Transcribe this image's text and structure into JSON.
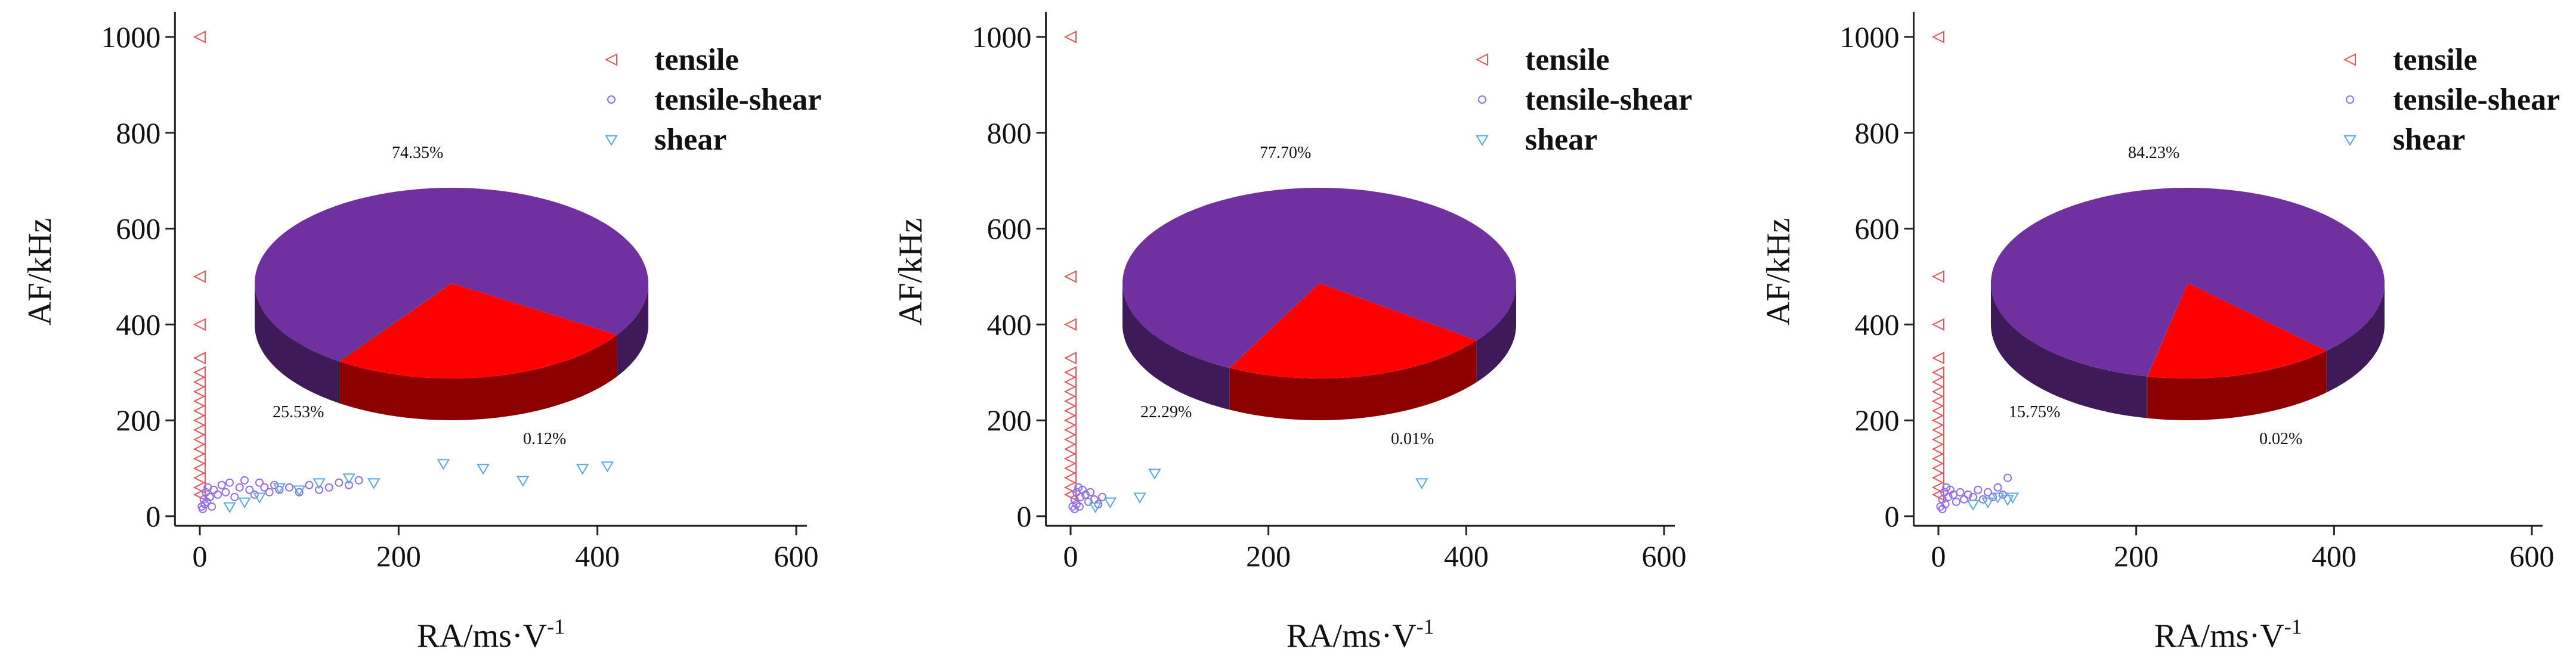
{
  "chart_data": [
    {
      "type": "scatter",
      "xlabel": "RA/ms·V",
      "xlabel_sup": "-1",
      "ylabel": "AF/kHz",
      "xlim": [
        -25,
        600
      ],
      "ylim": [
        -20,
        1040
      ],
      "xticks": [
        "0",
        "200",
        "400",
        "600"
      ],
      "yticks": [
        "0",
        "200",
        "400",
        "600",
        "800",
        "1000"
      ],
      "legend": [
        {
          "name": "tensile",
          "marker": "triangle-left",
          "color": "#e8555a"
        },
        {
          "name": "tensile-shear",
          "marker": "circle",
          "color": "#8f6cf0"
        },
        {
          "name": "shear",
          "marker": "triangle-down",
          "color": "#5aa8e0"
        }
      ],
      "series": [
        {
          "name": "tensile",
          "points": [
            [
              0,
              1000
            ],
            [
              0,
              500
            ],
            [
              0,
              400
            ],
            [
              0,
              330
            ],
            [
              0,
              300
            ],
            [
              0,
              280
            ],
            [
              0,
              260
            ],
            [
              0,
              240
            ],
            [
              0,
              220
            ],
            [
              0,
              200
            ],
            [
              0,
              180
            ],
            [
              0,
              160
            ],
            [
              0,
              140
            ],
            [
              0,
              120
            ],
            [
              0,
              100
            ],
            [
              0,
              80
            ],
            [
              0,
              60
            ],
            [
              0,
              45
            ]
          ]
        },
        {
          "name": "tensile-shear",
          "points": [
            [
              2,
              20
            ],
            [
              4,
              35
            ],
            [
              6,
              50
            ],
            [
              8,
              60
            ],
            [
              10,
              40
            ],
            [
              14,
              55
            ],
            [
              18,
              45
            ],
            [
              22,
              65
            ],
            [
              26,
              50
            ],
            [
              30,
              70
            ],
            [
              35,
              40
            ],
            [
              40,
              60
            ],
            [
              45,
              75
            ],
            [
              50,
              55
            ],
            [
              55,
              45
            ],
            [
              60,
              70
            ],
            [
              65,
              60
            ],
            [
              70,
              50
            ],
            [
              75,
              65
            ],
            [
              80,
              55
            ],
            [
              90,
              60
            ],
            [
              100,
              50
            ],
            [
              110,
              65
            ],
            [
              120,
              55
            ],
            [
              130,
              60
            ],
            [
              140,
              70
            ],
            [
              150,
              65
            ],
            [
              160,
              75
            ],
            [
              3,
              15
            ],
            [
              5,
              25
            ],
            [
              7,
              30
            ],
            [
              12,
              20
            ]
          ]
        },
        {
          "name": "shear",
          "points": [
            [
              60,
              40
            ],
            [
              80,
              60
            ],
            [
              100,
              55
            ],
            [
              120,
              70
            ],
            [
              150,
              80
            ],
            [
              175,
              70
            ],
            [
              245,
              110
            ],
            [
              285,
              100
            ],
            [
              325,
              75
            ],
            [
              385,
              100
            ],
            [
              410,
              105
            ],
            [
              30,
              20
            ],
            [
              45,
              30
            ]
          ]
        }
      ],
      "pie": {
        "slices": [
          {
            "name": "tensile-shear",
            "value": 74.35,
            "label": "74.35%",
            "color": "#7030a0"
          },
          {
            "name": "tensile",
            "value": 25.53,
            "label": "25.53%",
            "color": "#ff0000"
          },
          {
            "name": "shear",
            "value": 0.12,
            "label": "0.12%",
            "color": "#1f4e79"
          }
        ]
      }
    },
    {
      "type": "scatter",
      "xlabel": "RA/ms·V",
      "xlabel_sup": "-1",
      "ylabel": "AF/kHz",
      "xlim": [
        -25,
        600
      ],
      "ylim": [
        -20,
        1040
      ],
      "xticks": [
        "0",
        "200",
        "400",
        "600"
      ],
      "yticks": [
        "0",
        "200",
        "400",
        "600",
        "800",
        "1000"
      ],
      "legend": [
        {
          "name": "tensile",
          "marker": "triangle-left",
          "color": "#e8555a"
        },
        {
          "name": "tensile-shear",
          "marker": "circle",
          "color": "#8f6cf0"
        },
        {
          "name": "shear",
          "marker": "triangle-down",
          "color": "#5aa8e0"
        }
      ],
      "series": [
        {
          "name": "tensile",
          "points": [
            [
              0,
              1000
            ],
            [
              0,
              500
            ],
            [
              0,
              400
            ],
            [
              0,
              330
            ],
            [
              0,
              300
            ],
            [
              0,
              280
            ],
            [
              0,
              260
            ],
            [
              0,
              240
            ],
            [
              0,
              220
            ],
            [
              0,
              200
            ],
            [
              0,
              180
            ],
            [
              0,
              160
            ],
            [
              0,
              140
            ],
            [
              0,
              120
            ],
            [
              0,
              100
            ],
            [
              0,
              80
            ],
            [
              0,
              60
            ],
            [
              0,
              45
            ]
          ]
        },
        {
          "name": "tensile-shear",
          "points": [
            [
              2,
              20
            ],
            [
              4,
              35
            ],
            [
              6,
              50
            ],
            [
              8,
              60
            ],
            [
              10,
              40
            ],
            [
              12,
              55
            ],
            [
              15,
              45
            ],
            [
              18,
              30
            ],
            [
              20,
              50
            ],
            [
              24,
              35
            ],
            [
              28,
              25
            ],
            [
              32,
              40
            ],
            [
              4,
              15
            ],
            [
              6,
              25
            ],
            [
              9,
              20
            ]
          ]
        },
        {
          "name": "shear",
          "points": [
            [
              70,
              40
            ],
            [
              85,
              90
            ],
            [
              355,
              70
            ],
            [
              25,
              20
            ],
            [
              40,
              30
            ]
          ]
        }
      ],
      "pie": {
        "slices": [
          {
            "name": "tensile-shear",
            "value": 77.7,
            "label": "77.70%",
            "color": "#7030a0"
          },
          {
            "name": "tensile",
            "value": 22.29,
            "label": "22.29%",
            "color": "#ff0000"
          },
          {
            "name": "shear",
            "value": 0.01,
            "label": "0.01%",
            "color": "#1f4e79"
          }
        ]
      }
    },
    {
      "type": "scatter",
      "xlabel": "RA/ms·V",
      "xlabel_sup": "-1",
      "ylabel": "AF/kHz",
      "xlim": [
        -25,
        600
      ],
      "ylim": [
        -20,
        1040
      ],
      "xticks": [
        "0",
        "200",
        "400",
        "600"
      ],
      "yticks": [
        "0",
        "200",
        "400",
        "600",
        "800",
        "1000"
      ],
      "legend": [
        {
          "name": "tensile",
          "marker": "triangle-left",
          "color": "#e8555a"
        },
        {
          "name": "tensile-shear",
          "marker": "circle",
          "color": "#8f6cf0"
        },
        {
          "name": "shear",
          "marker": "triangle-down",
          "color": "#5aa8e0"
        }
      ],
      "series": [
        {
          "name": "tensile",
          "points": [
            [
              0,
              1000
            ],
            [
              0,
              500
            ],
            [
              0,
              400
            ],
            [
              0,
              330
            ],
            [
              0,
              300
            ],
            [
              0,
              280
            ],
            [
              0,
              260
            ],
            [
              0,
              240
            ],
            [
              0,
              220
            ],
            [
              0,
              200
            ],
            [
              0,
              180
            ],
            [
              0,
              160
            ],
            [
              0,
              140
            ],
            [
              0,
              120
            ],
            [
              0,
              100
            ],
            [
              0,
              80
            ],
            [
              0,
              60
            ],
            [
              0,
              45
            ]
          ]
        },
        {
          "name": "tensile-shear",
          "points": [
            [
              2,
              20
            ],
            [
              4,
              35
            ],
            [
              6,
              50
            ],
            [
              8,
              60
            ],
            [
              10,
              40
            ],
            [
              12,
              55
            ],
            [
              15,
              45
            ],
            [
              18,
              30
            ],
            [
              22,
              50
            ],
            [
              26,
              35
            ],
            [
              30,
              45
            ],
            [
              35,
              40
            ],
            [
              40,
              55
            ],
            [
              45,
              35
            ],
            [
              50,
              50
            ],
            [
              55,
              40
            ],
            [
              60,
              60
            ],
            [
              65,
              45
            ],
            [
              70,
              80
            ],
            [
              4,
              15
            ],
            [
              7,
              25
            ]
          ]
        },
        {
          "name": "shear",
          "points": [
            [
              50,
              30
            ],
            [
              60,
              40
            ],
            [
              70,
              35
            ],
            [
              75,
              40
            ],
            [
              35,
              25
            ]
          ]
        }
      ],
      "pie": {
        "slices": [
          {
            "name": "tensile-shear",
            "value": 84.23,
            "label": "84.23%",
            "color": "#7030a0"
          },
          {
            "name": "tensile",
            "value": 15.75,
            "label": "15.75%",
            "color": "#ff0000"
          },
          {
            "name": "shear",
            "value": 0.02,
            "label": "0.02%",
            "color": "#1f4e79"
          }
        ]
      }
    }
  ]
}
